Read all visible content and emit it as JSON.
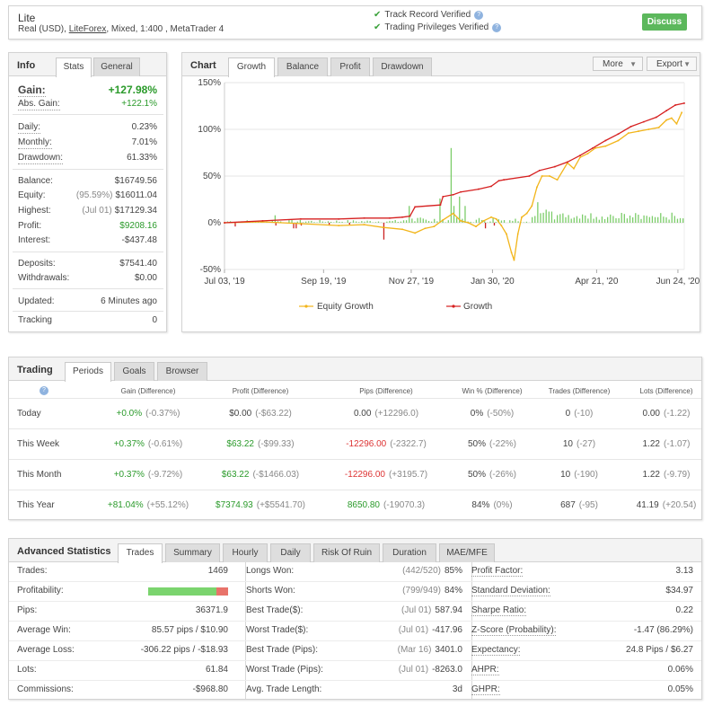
{
  "header": {
    "account_name": "Lite",
    "account_prefix": "Real (USD), ",
    "broker": "LiteForex",
    "account_suffix": ", Mixed, 1:400 , MetaTrader 4",
    "verify_1": "Track Record Verified",
    "verify_2": "Trading Privileges Verified",
    "discuss_label": "Discuss"
  },
  "info": {
    "title": "Info",
    "tabs": [
      "Stats",
      "General"
    ],
    "gain_label": "Gain:",
    "gain_value": "+127.98%",
    "abs_gain_label": "Abs. Gain:",
    "abs_gain_value": "+122.1%",
    "daily_label": "Daily:",
    "daily_value": "0.23%",
    "monthly_label": "Monthly:",
    "monthly_value": "7.01%",
    "drawdown_label": "Drawdown:",
    "drawdown_value": "61.33%",
    "balance_label": "Balance:",
    "balance_value": "$16749.56",
    "equity_label": "Equity:",
    "equity_note": "(95.59%)",
    "equity_value": "$16011.04",
    "highest_label": "Highest:",
    "highest_note": "(Jul 01)",
    "highest_value": "$17129.34",
    "profit_label": "Profit:",
    "profit_value": "$9208.16",
    "interest_label": "Interest:",
    "interest_value": "-$437.48",
    "deposits_label": "Deposits:",
    "deposits_value": "$7541.40",
    "withdrawals_label": "Withdrawals:",
    "withdrawals_value": "$0.00",
    "updated_label": "Updated:",
    "updated_value": "6 Minutes ago",
    "tracking_label": "Tracking",
    "tracking_value": "0"
  },
  "chart": {
    "title": "Chart",
    "tabs": [
      "Growth",
      "Balance",
      "Profit",
      "Drawdown"
    ],
    "more_label": "More",
    "export_label": "Export",
    "colors": {
      "equity": "#f2b51a",
      "growth": "#d62020",
      "bars": "#7ccd6a",
      "bars_neg": "#cc2222"
    }
  },
  "chart_data": {
    "type": "line",
    "y_ticks": [
      "150%",
      "100%",
      "50%",
      "0%",
      "-50%"
    ],
    "ylim": [
      -50,
      150
    ],
    "x_ticks": [
      "Jul 03, '19",
      "Sep 19, '19",
      "Nov 27, '19",
      "Jan 30, '20",
      "Apr 21, '20",
      "Jun 24, '20"
    ],
    "x_tick_days": [
      0,
      78,
      147,
      211,
      293,
      357
    ],
    "x_max_day": 362,
    "series": [
      {
        "name": "Equity Growth",
        "color": "#f2b51a",
        "points": [
          [
            0,
            0
          ],
          [
            30,
            1
          ],
          [
            60,
            -1
          ],
          [
            90,
            -3
          ],
          [
            110,
            -2
          ],
          [
            125,
            -5
          ],
          [
            140,
            -7
          ],
          [
            150,
            -11
          ],
          [
            158,
            -6
          ],
          [
            165,
            -4
          ],
          [
            172,
            3
          ],
          [
            180,
            10
          ],
          [
            186,
            2
          ],
          [
            192,
            0
          ],
          [
            198,
            -4
          ],
          [
            204,
            2
          ],
          [
            210,
            6
          ],
          [
            214,
            4
          ],
          [
            218,
            -3
          ],
          [
            222,
            -12
          ],
          [
            226,
            -32
          ],
          [
            228,
            -40
          ],
          [
            231,
            -12
          ],
          [
            234,
            6
          ],
          [
            238,
            10
          ],
          [
            242,
            18
          ],
          [
            246,
            38
          ],
          [
            250,
            50
          ],
          [
            256,
            50
          ],
          [
            262,
            46
          ],
          [
            270,
            64
          ],
          [
            275,
            58
          ],
          [
            280,
            70
          ],
          [
            286,
            74
          ],
          [
            292,
            80
          ],
          [
            300,
            82
          ],
          [
            310,
            88
          ],
          [
            318,
            96
          ],
          [
            326,
            98
          ],
          [
            334,
            100
          ],
          [
            342,
            102
          ],
          [
            348,
            110
          ],
          [
            352,
            112
          ],
          [
            356,
            106
          ],
          [
            360,
            118
          ]
        ]
      },
      {
        "name": "Growth",
        "color": "#d62020",
        "points": [
          [
            0,
            0
          ],
          [
            30,
            2
          ],
          [
            60,
            4
          ],
          [
            90,
            4
          ],
          [
            110,
            5
          ],
          [
            130,
            5
          ],
          [
            140,
            6
          ],
          [
            146,
            7
          ],
          [
            150,
            17
          ],
          [
            170,
            19
          ],
          [
            172,
            28
          ],
          [
            180,
            30
          ],
          [
            186,
            33
          ],
          [
            200,
            36
          ],
          [
            210,
            39
          ],
          [
            216,
            45
          ],
          [
            220,
            46
          ],
          [
            240,
            50
          ],
          [
            248,
            56
          ],
          [
            260,
            60
          ],
          [
            270,
            65
          ],
          [
            280,
            72
          ],
          [
            290,
            80
          ],
          [
            300,
            88
          ],
          [
            310,
            95
          ],
          [
            320,
            103
          ],
          [
            330,
            108
          ],
          [
            340,
            113
          ],
          [
            348,
            120
          ],
          [
            355,
            126
          ],
          [
            362,
            128
          ]
        ]
      }
    ],
    "bars_note": "daily profit bars shown along 0% line"
  },
  "trading": {
    "title": "Trading",
    "tabs": [
      "Periods",
      "Goals",
      "Browser"
    ],
    "columns": [
      "Gain (Difference)",
      "Profit (Difference)",
      "Pips (Difference)",
      "Win % (Difference)",
      "Trades (Difference)",
      "Lots (Difference)"
    ],
    "rows": [
      {
        "period": "Today",
        "gain": "+0.0%",
        "gain_diff": "(-0.37%)",
        "profit": "$0.00",
        "profit_diff": "(-$63.22)",
        "pips": "0.00",
        "pips_diff": "(+12296.0)",
        "win": "0%",
        "win_diff": "(-50%)",
        "trades": "0",
        "trades_diff": "(-10)",
        "lots": "0.00",
        "lots_diff": "(-1.22)"
      },
      {
        "period": "This Week",
        "gain": "+0.37%",
        "gain_diff": "(-0.61%)",
        "profit": "$63.22",
        "profit_diff": "(-$99.33)",
        "pips": "-12296.00",
        "pips_diff": "(-2322.7)",
        "win": "50%",
        "win_diff": "(-22%)",
        "trades": "10",
        "trades_diff": "(-27)",
        "lots": "1.22",
        "lots_diff": "(-1.07)"
      },
      {
        "period": "This Month",
        "gain": "+0.37%",
        "gain_diff": "(-9.72%)",
        "profit": "$63.22",
        "profit_diff": "(-$1466.03)",
        "pips": "-12296.00",
        "pips_diff": "(+3195.7)",
        "win": "50%",
        "win_diff": "(-26%)",
        "trades": "10",
        "trades_diff": "(-190)",
        "lots": "1.22",
        "lots_diff": "(-9.79)"
      },
      {
        "period": "This Year",
        "gain": "+81.04%",
        "gain_diff": "(+55.12%)",
        "profit": "$7374.93",
        "profit_diff": "(+$5541.70)",
        "pips": "8650.80",
        "pips_diff": "(-19070.3)",
        "win": "84%",
        "win_diff": "(0%)",
        "trades": "687",
        "trades_diff": "(-95)",
        "lots": "41.19",
        "lots_diff": "(+20.54)"
      }
    ]
  },
  "advanced": {
    "title": "Advanced Statistics",
    "tabs": [
      "Trades",
      "Summary",
      "Hourly",
      "Daily",
      "Risk Of Ruin",
      "Duration",
      "MAE/MFE"
    ],
    "col1": [
      {
        "label": "Trades:",
        "value": "1469"
      },
      {
        "label": "Profitability:",
        "value": ""
      },
      {
        "label": "Pips:",
        "value": "36371.9"
      },
      {
        "label": "Average Win:",
        "value": "85.57 pips / $10.90"
      },
      {
        "label": "Average Loss:",
        "value": "-306.22 pips / -$18.93"
      },
      {
        "label": "Lots:",
        "value": "61.84"
      },
      {
        "label": "Commissions:",
        "value": "-$968.80"
      }
    ],
    "profitability_win_fraction": 0.85,
    "col2": [
      {
        "label": "Longs Won:",
        "note": "(442/520)",
        "value": "85%"
      },
      {
        "label": "Shorts Won:",
        "note": "(799/949)",
        "value": "84%"
      },
      {
        "label": "Best Trade($):",
        "note": "(Jul 01)",
        "value": "587.94"
      },
      {
        "label": "Worst Trade($):",
        "note": "(Jul 01)",
        "value": "-417.96"
      },
      {
        "label": "Best Trade (Pips):",
        "note": "(Mar 16)",
        "value": "3401.0"
      },
      {
        "label": "Worst Trade (Pips):",
        "note": "(Jul 01)",
        "value": "-8263.0"
      },
      {
        "label": "Avg. Trade Length:",
        "note": "",
        "value": "3d"
      }
    ],
    "col3": [
      {
        "label": "Profit Factor:",
        "value": "3.13"
      },
      {
        "label": "Standard Deviation:",
        "value": "$34.97"
      },
      {
        "label": "Sharpe Ratio:",
        "value": "0.22"
      },
      {
        "label": "Z-Score (Probability):",
        "value": "-1.47 (86.29%)"
      },
      {
        "label": "Expectancy:",
        "value": "24.8 Pips / $6.27"
      },
      {
        "label": "AHPR:",
        "value": "0.06%"
      },
      {
        "label": "GHPR:",
        "value": "0.05%"
      }
    ]
  }
}
